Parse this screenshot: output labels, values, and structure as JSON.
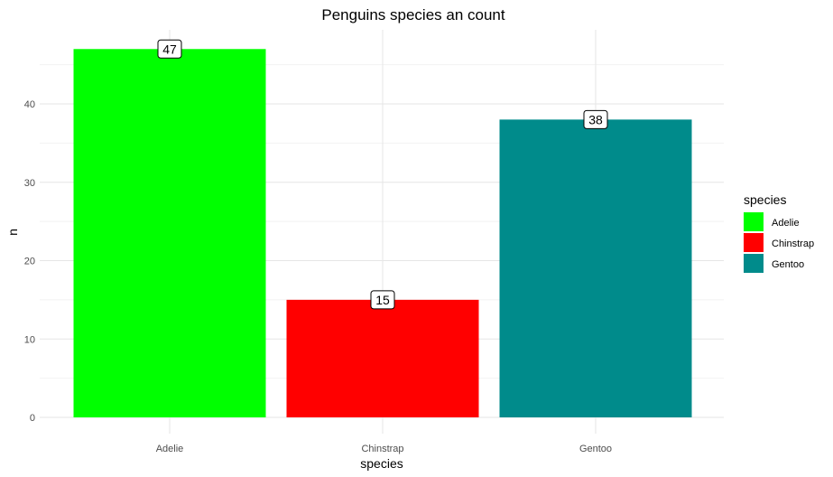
{
  "chart_data": {
    "type": "bar",
    "title": "Penguins species an count",
    "xlabel": "species",
    "ylabel": "n",
    "categories": [
      "Adelie",
      "Chinstrap",
      "Gentoo"
    ],
    "values": [
      47,
      15,
      38
    ],
    "value_labels": [
      "47",
      "15",
      "38"
    ],
    "colors": [
      "#00ff00",
      "#ff0000",
      "#008b8b"
    ],
    "ylim": [
      0,
      49
    ],
    "yticks": [
      0,
      10,
      20,
      30,
      40
    ],
    "ytick_labels": [
      "0",
      "10",
      "20",
      "30",
      "40"
    ],
    "grid": true,
    "legend": {
      "title": "species",
      "placement": "right",
      "entries": [
        "Adelie",
        "Chinstrap",
        "Gentoo"
      ]
    }
  }
}
